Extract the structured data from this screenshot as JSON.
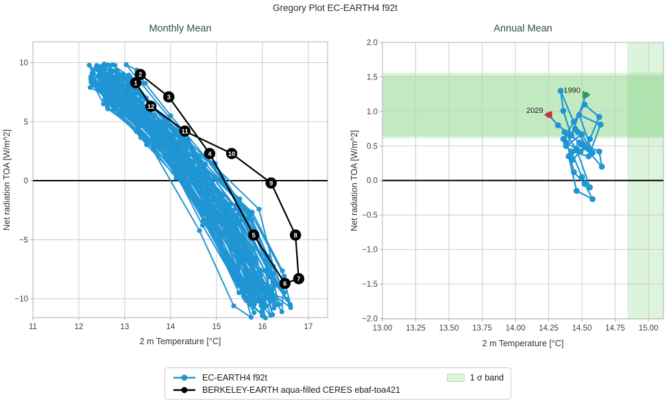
{
  "figure": {
    "title": "Gregory Plot EC-EARTH4 f92t"
  },
  "colors": {
    "model_blue": "#2095d3",
    "obs_black": "#000000",
    "teal_title": "#2f4f4f",
    "grid": "#cccccc",
    "spine": "#bdbdbd",
    "tick_text": "#3c3c3c",
    "band_fill": "rgba(110,205,110,0.24)",
    "marker_1990": "#2e9e3e",
    "marker_2029": "#d42f2a",
    "zero_line": "#000000"
  },
  "legend": {
    "entries": [
      {
        "label": "EC-EARTH4 f92t",
        "swatch": "line-dot-blue"
      },
      {
        "label": "BERKELEY-EARTH aqua-filled CERES ebaf-toa421",
        "swatch": "line-dot-black"
      },
      {
        "label": "1 σ band",
        "swatch": "green-patch"
      }
    ]
  },
  "chart_data": [
    {
      "type": "line",
      "name": "monthly_mean",
      "title": "Monthly Mean",
      "xlabel": "2 m Temperature [°C]",
      "ylabel": "Net radiation TOA [W/m^2]",
      "xlim": [
        11.0,
        17.42
      ],
      "ylim": [
        -11.59,
        11.77
      ],
      "xticks": [
        11,
        12,
        13,
        14,
        15,
        16,
        17
      ],
      "yticks": [
        -10,
        -5,
        0,
        5,
        10
      ],
      "x_decimals": 0,
      "y_decimals": 0,
      "grid": true,
      "zero_line_y": 0,
      "obs_cycle": {
        "series_name": "BERKELEY-EARTH aqua-filled CERES ebaf-toa421",
        "months": [
          1,
          2,
          3,
          4,
          5,
          6,
          7,
          8,
          9,
          10,
          11,
          12
        ],
        "x": [
          13.24,
          13.34,
          13.96,
          14.85,
          15.81,
          16.49,
          16.79,
          16.72,
          16.19,
          15.33,
          14.31,
          13.57
        ],
        "y": [
          8.3,
          9.0,
          7.1,
          2.3,
          -4.6,
          -8.7,
          -8.3,
          -4.6,
          -0.2,
          2.3,
          4.2,
          6.3
        ],
        "closed": true
      },
      "model_ensemble": {
        "series_name": "EC-EARTH4 f92t",
        "mean_cycle_x": [
          12.75,
          12.62,
          13.02,
          13.95,
          15.05,
          15.85,
          16.15,
          15.98,
          15.42,
          14.5,
          13.62,
          13.0
        ],
        "mean_cycle_y": [
          8.7,
          8.9,
          7.4,
          3.8,
          -3.0,
          -9.0,
          -10.2,
          -7.7,
          -2.7,
          1.3,
          4.6,
          6.9
        ],
        "n_years": 40,
        "seed": 5,
        "year_jitter_x": 0.42,
        "year_jitter_y": 0.8,
        "month_jitter_x": 0.15,
        "month_jitter_y": 0.55
      }
    },
    {
      "type": "line",
      "name": "annual_mean",
      "title": "Annual Mean",
      "xlabel": "2 m Temperature [°C]",
      "ylabel": "Net radiation TOA [W/m^2]",
      "xlim": [
        13.0,
        15.113
      ],
      "ylim": [
        -2.005,
        2.0
      ],
      "xticks": [
        13.0,
        13.25,
        13.5,
        13.75,
        14.0,
        14.25,
        14.5,
        14.75,
        15.0
      ],
      "yticks": [
        -2.0,
        -1.5,
        -1.0,
        -0.5,
        0.0,
        0.5,
        1.0,
        1.5,
        2.0
      ],
      "x_decimals": 2,
      "y_decimals": 1,
      "grid": true,
      "zero_line_y": 0,
      "sigma_bands_horizontal": [
        [
          0.61,
          1.56
        ],
        [
          0.64,
          1.52
        ]
      ],
      "sigma_bands_vertical": [
        [
          14.84,
          15.113
        ]
      ],
      "annual_series": {
        "series_name": "EC-EARTH4 f92t",
        "start_year": 1990,
        "end_year": 2029,
        "x": [
          14.53,
          14.42,
          14.36,
          14.34,
          14.47,
          14.55,
          14.45,
          14.38,
          14.5,
          14.58,
          14.48,
          14.64,
          14.55,
          14.42,
          14.5,
          14.56,
          14.46,
          14.37,
          14.44,
          14.52,
          14.58,
          14.46,
          14.4,
          14.48,
          14.63,
          14.65,
          14.52,
          14.43,
          14.38,
          14.49,
          14.56,
          14.63,
          14.52,
          14.44,
          14.36,
          14.42,
          14.5,
          14.4,
          14.32,
          14.25
        ],
        "y": [
          1.24,
          0.65,
          1.01,
          1.3,
          0.7,
          0.45,
          0.75,
          0.5,
          0.67,
          0.4,
          0.95,
          0.81,
          0.35,
          0.42,
          0.05,
          -0.1,
          0.45,
          0.7,
          0.12,
          -0.05,
          -0.27,
          -0.15,
          0.35,
          0.55,
          0.42,
          0.2,
          0.48,
          0.3,
          0.55,
          0.42,
          0.6,
          0.92,
          1.1,
          0.85,
          0.6,
          0.4,
          0.52,
          0.68,
          0.8,
          0.95
        ]
      },
      "annotations": [
        {
          "label": "1990",
          "x": 14.53,
          "y": 1.24,
          "marker": "triangle-right",
          "color_key": "marker_1990"
        },
        {
          "label": "2029",
          "x": 14.25,
          "y": 0.95,
          "marker": "triangle-left",
          "color_key": "marker_2029"
        }
      ]
    }
  ]
}
